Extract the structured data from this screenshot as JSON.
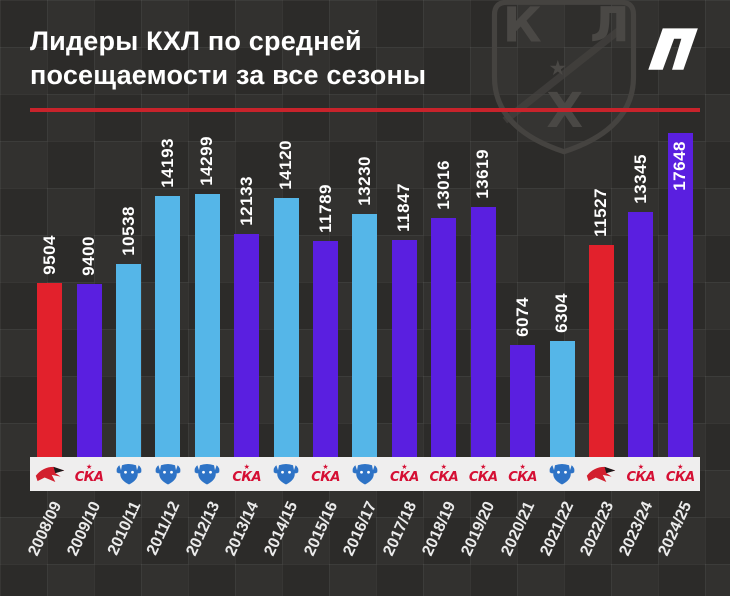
{
  "header": {
    "title_line1": "Лидеры КХЛ по средней",
    "title_line2": "посещаемости за все сезоны"
  },
  "logos": {
    "khl_k": "К",
    "khl_h": "Х",
    "khl_l": "Л",
    "khl_star": "★",
    "partner": "white-angular-logo"
  },
  "team_logos": {
    "ska_label": "СКА",
    "ska_star": "★",
    "ska_color": "#d50f34",
    "avangard_color": "#d21f2e",
    "avangard_dark": "#1a1a1a",
    "dinamo_color": "#2e73c6"
  },
  "chart_data": {
    "type": "bar",
    "title": "Лидеры КХЛ по средней посещаемости за все сезоны",
    "categories": [
      "2008/09",
      "2009/10",
      "2010/11",
      "2011/12",
      "2012/13",
      "2013/14",
      "2014/15",
      "2015/16",
      "2016/17",
      "2017/18",
      "2018/19",
      "2019/20",
      "2020/21",
      "2021/22",
      "2022/23",
      "2023/24",
      "2024/25"
    ],
    "values": [
      9504,
      9400,
      10538,
      14193,
      14299,
      12133,
      14120,
      11789,
      13230,
      11847,
      13016,
      13619,
      6074,
      6304,
      11527,
      13345,
      17648
    ],
    "bar_colors": [
      "red",
      "purple",
      "blue",
      "blue",
      "blue",
      "purple",
      "blue",
      "purple",
      "blue",
      "purple",
      "purple",
      "purple",
      "purple",
      "blue",
      "red",
      "purple",
      "purple"
    ],
    "teams": [
      "avangard",
      "ska",
      "dinamo-minsk",
      "dinamo-minsk",
      "dinamo-minsk",
      "ska",
      "dinamo-minsk",
      "ska",
      "dinamo-minsk",
      "ska",
      "ska",
      "ska",
      "ska",
      "dinamo-minsk",
      "avangard",
      "ska",
      "ska"
    ],
    "ylim": [
      0,
      17648
    ],
    "xlabel": "",
    "ylabel": "",
    "legend": "none",
    "grid": true
  },
  "colors": {
    "red": "#e2212c",
    "purple": "#5a1fe0",
    "blue": "#55b6e8",
    "accent_line": "#c8232b",
    "background": "#2e2d2b",
    "strip": "#efeeee"
  }
}
